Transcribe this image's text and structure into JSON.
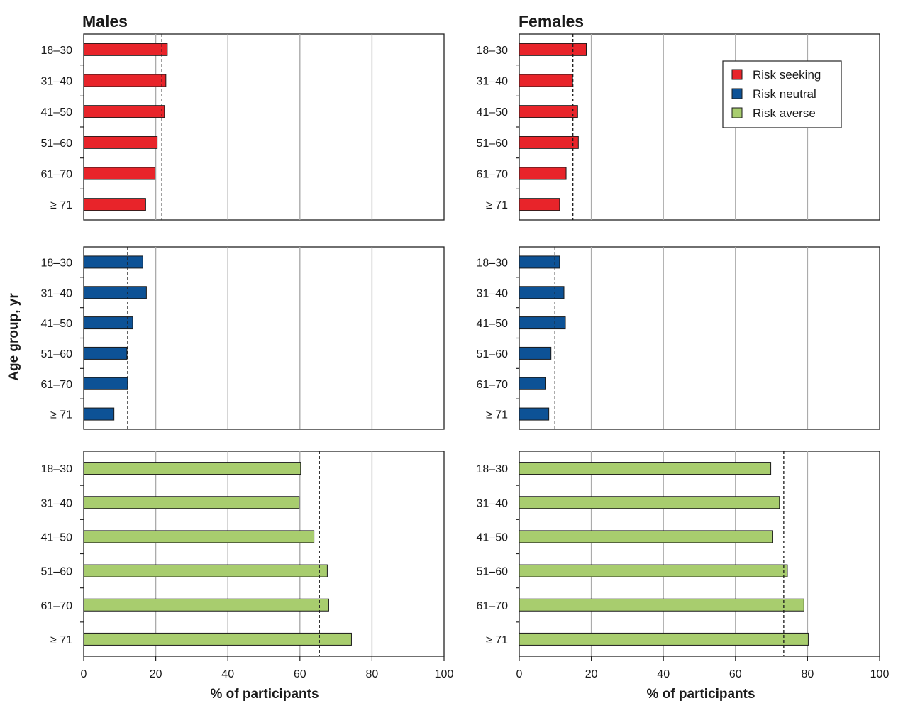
{
  "chart_data": {
    "type": "bar",
    "orientation": "horizontal",
    "columns": [
      "Males",
      "Females"
    ],
    "categories": [
      "18–30",
      "31–40",
      "41–50",
      "51–60",
      "61–70",
      "≥ 71"
    ],
    "ylabel": "Age group, yr",
    "xlabel": "% of participants",
    "xlim": [
      0,
      100
    ],
    "xticks": [
      "0",
      "20",
      "40",
      "60",
      "80",
      "100"
    ],
    "grid": "vertical lines at 20, 40, 60, 80",
    "legend": {
      "placement": "top-right of Females risk-seeking panel",
      "entries": [
        {
          "label": "Risk seeking",
          "color": "#e8242a"
        },
        {
          "label": "Risk neutral",
          "color": "#0d5296"
        },
        {
          "label": "Risk averse",
          "color": "#a8cd6e"
        }
      ]
    },
    "panels": [
      {
        "column": "Males",
        "series": "Risk seeking",
        "color": "#e8242a",
        "values": [
          23.2,
          22.8,
          22.4,
          20.4,
          19.8,
          17.2
        ],
        "reference_line": 21.7
      },
      {
        "column": "Males",
        "series": "Risk neutral",
        "color": "#0d5296",
        "values": [
          16.4,
          17.4,
          13.6,
          12.0,
          12.2,
          8.4
        ],
        "reference_line": 12.2
      },
      {
        "column": "Males",
        "series": "Risk averse",
        "color": "#a8cd6e",
        "values": [
          60.2,
          59.8,
          63.9,
          67.6,
          68.0,
          74.3
        ],
        "reference_line": 65.4
      },
      {
        "column": "Females",
        "series": "Risk seeking",
        "color": "#e8242a",
        "values": [
          18.6,
          14.8,
          16.2,
          16.4,
          13.0,
          11.2
        ],
        "reference_line": 14.9
      },
      {
        "column": "Females",
        "series": "Risk neutral",
        "color": "#0d5296",
        "values": [
          11.2,
          12.4,
          12.8,
          8.8,
          7.2,
          8.2
        ],
        "reference_line": 9.9
      },
      {
        "column": "Females",
        "series": "Risk averse",
        "color": "#a8cd6e",
        "values": [
          69.8,
          72.2,
          70.2,
          74.4,
          79.0,
          80.2
        ],
        "reference_line": 73.4
      }
    ]
  }
}
